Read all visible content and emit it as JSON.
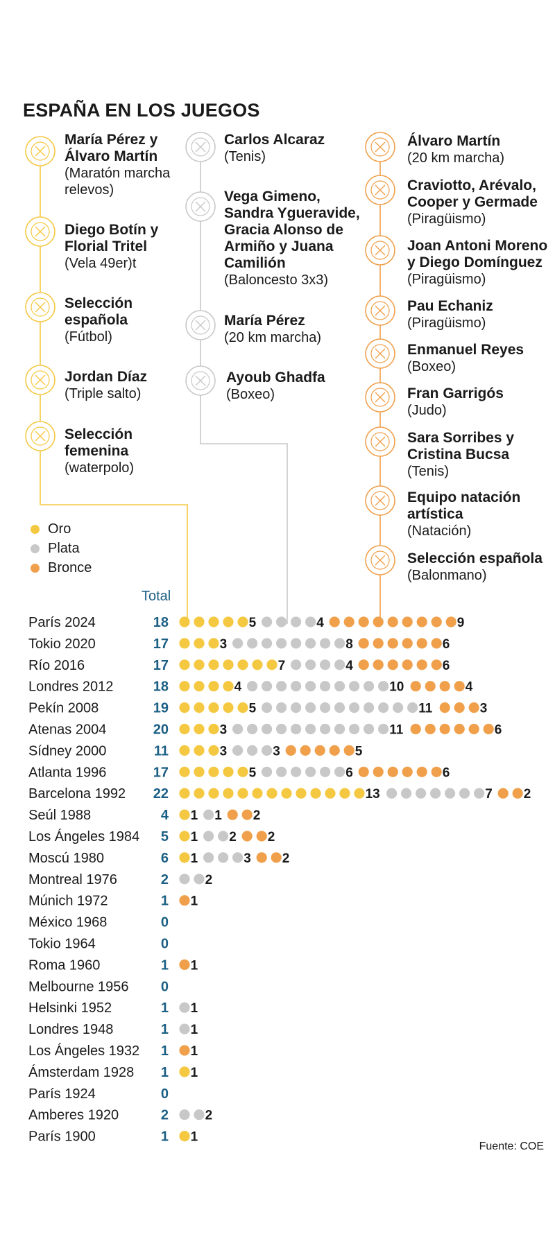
{
  "title": "ESPAÑA EN LOS JUEGOS",
  "source": "Fuente: COE",
  "total_header": "Total",
  "colors": {
    "oro": "#f5c842",
    "plata": "#c8c8c8",
    "bronce": "#f0a04b",
    "total": "#1b5f84",
    "oro_line": "#f5c842",
    "plata_line": "#c8c8c8",
    "bronce_line": "#f0a04b"
  },
  "legend": [
    {
      "key": "oro",
      "label": "Oro"
    },
    {
      "key": "plata",
      "label": "Plata"
    },
    {
      "key": "bronce",
      "label": "Bronce"
    }
  ],
  "medalists": {
    "oro": [
      {
        "names": "María Pérez y Álvaro Martín",
        "sport": "(Maratón marcha relevos)",
        "icon": "race-walking-icon"
      },
      {
        "names": "Diego Botín y Florial Tritel",
        "sport": "(Vela 49er)t",
        "icon": "sailing-icon"
      },
      {
        "names": "Selección española",
        "sport": "(Fútbol)",
        "icon": "football-icon"
      },
      {
        "names": "Jordan Díaz",
        "sport": "(Triple salto)",
        "icon": "triple-jump-icon"
      },
      {
        "names": "Selección femenina",
        "sport": "(waterpolo)",
        "icon": "water-polo-icon"
      }
    ],
    "plata": [
      {
        "names": "Carlos Alcaraz",
        "sport": "(Tenis)",
        "icon": "tennis-icon"
      },
      {
        "names": "Vega Gimeno, Sandra Ygueravide, Gracia Alonso de Armiño y Juana Camilión",
        "sport": "(Baloncesto 3x3)",
        "icon": "basketball-icon"
      },
      {
        "names": "María Pérez",
        "sport": "(20 km marcha)",
        "icon": "race-walking-icon"
      },
      {
        "names": "Ayoub Ghadfa",
        "sport": "(Boxeo)",
        "icon": "boxing-icon"
      }
    ],
    "bronce": [
      {
        "names": "Álvaro Martín",
        "sport": "(20 km marcha)",
        "icon": "race-walking-icon"
      },
      {
        "names": "Craviotto, Arévalo, Cooper y Germade",
        "sport": "(Piragüismo)",
        "icon": "canoeing-icon"
      },
      {
        "names": "Joan Antoni Moreno y Diego Domínguez",
        "sport": "(Piragüismo)",
        "icon": "canoeing-icon"
      },
      {
        "names": "Pau Echaniz",
        "sport": "(Piragüismo)",
        "icon": "canoeing-icon"
      },
      {
        "names": "Enmanuel Reyes",
        "sport": "(Boxeo)",
        "icon": "boxing-icon"
      },
      {
        "names": "Fran Garrigós",
        "sport": "(Judo)",
        "icon": "judo-icon"
      },
      {
        "names": "Sara Sorribes y Cristina Bucsa",
        "sport": "(Tenis)",
        "icon": "tennis-icon"
      },
      {
        "names": "Equipo natación artística",
        "sport": "(Natación)",
        "icon": "artistic-swimming-icon"
      },
      {
        "names": "Selección española",
        "sport": "(Balonmano)",
        "icon": "handball-icon"
      }
    ]
  },
  "chart_data": {
    "type": "dot-strip",
    "title": "ESPAÑA EN LOS JUEGOS",
    "series": [
      {
        "key": "oro",
        "name": "Oro"
      },
      {
        "key": "plata",
        "name": "Plata"
      },
      {
        "key": "bronce",
        "name": "Bronce"
      }
    ],
    "rows": [
      {
        "games": "París 2024",
        "total": 18,
        "oro": 5,
        "plata": 4,
        "bronce": 9
      },
      {
        "games": "Tokio 2020",
        "total": 17,
        "oro": 3,
        "plata": 8,
        "bronce": 6
      },
      {
        "games": "Río 2016",
        "total": 17,
        "oro": 7,
        "plata": 4,
        "bronce": 6
      },
      {
        "games": "Londres 2012",
        "total": 18,
        "oro": 4,
        "plata": 10,
        "bronce": 4
      },
      {
        "games": "Pekín 2008",
        "total": 19,
        "oro": 5,
        "plata": 11,
        "bronce": 3
      },
      {
        "games": "Atenas 2004",
        "total": 20,
        "oro": 3,
        "plata": 11,
        "bronce": 6
      },
      {
        "games": "Sídney 2000",
        "total": 11,
        "oro": 3,
        "plata": 3,
        "bronce": 5
      },
      {
        "games": "Atlanta 1996",
        "total": 17,
        "oro": 5,
        "plata": 6,
        "bronce": 6
      },
      {
        "games": "Barcelona 1992",
        "total": 22,
        "oro": 13,
        "plata": 7,
        "bronce": 2
      },
      {
        "games": "Seúl 1988",
        "total": 4,
        "oro": 1,
        "plata": 1,
        "bronce": 2
      },
      {
        "games": "Los Ángeles 1984",
        "total": 5,
        "oro": 1,
        "plata": 2,
        "bronce": 2
      },
      {
        "games": "Moscú 1980",
        "total": 6,
        "oro": 1,
        "plata": 3,
        "bronce": 2
      },
      {
        "games": "Montreal 1976",
        "total": 2,
        "oro": 0,
        "plata": 2,
        "bronce": 0
      },
      {
        "games": "Múnich 1972",
        "total": 1,
        "oro": 0,
        "plata": 0,
        "bronce": 1
      },
      {
        "games": "México 1968",
        "total": 0,
        "oro": 0,
        "plata": 0,
        "bronce": 0
      },
      {
        "games": "Tokio 1964",
        "total": 0,
        "oro": 0,
        "plata": 0,
        "bronce": 0
      },
      {
        "games": "Roma 1960",
        "total": 1,
        "oro": 0,
        "plata": 0,
        "bronce": 1
      },
      {
        "games": "Melbourne 1956",
        "total": 0,
        "oro": 0,
        "plata": 0,
        "bronce": 0
      },
      {
        "games": "Helsinki 1952",
        "total": 1,
        "oro": 0,
        "plata": 1,
        "bronce": 0
      },
      {
        "games": "Londres 1948",
        "total": 1,
        "oro": 0,
        "plata": 1,
        "bronce": 0
      },
      {
        "games": "Los Ángeles 1932",
        "total": 1,
        "oro": 0,
        "plata": 0,
        "bronce": 1
      },
      {
        "games": "Ámsterdam 1928",
        "total": 1,
        "oro": 1,
        "plata": 0,
        "bronce": 0
      },
      {
        "games": "París 1924",
        "total": 0,
        "oro": 0,
        "plata": 0,
        "bronce": 0
      },
      {
        "games": "Amberes 1920",
        "total": 2,
        "oro": 0,
        "plata": 2,
        "bronce": 0
      },
      {
        "games": "París 1900",
        "total": 1,
        "oro": 1,
        "plata": 0,
        "bronce": 0
      }
    ]
  }
}
